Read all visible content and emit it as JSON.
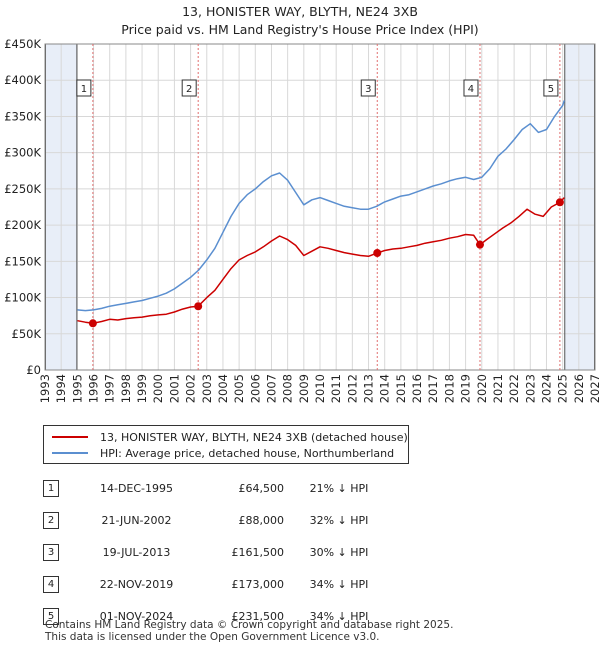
{
  "title_line1": "13, HONISTER WAY, BLYTH, NE24 3XB",
  "title_line2": "Price paid vs. HM Land Registry's House Price Index (HPI)",
  "legend": {
    "property": "13, HONISTER WAY, BLYTH, NE24 3XB (detached house)",
    "hpi": "HPI: Average price, detached house, Northumberland"
  },
  "colors": {
    "property": "#cc0000",
    "hpi": "#5b8fd0",
    "band": "#e8eef8",
    "grid": "#d8d8d8",
    "marker_line": "#e07070"
  },
  "sales": [
    {
      "num": "1",
      "date": "14-DEC-1995",
      "price": "£64,500",
      "pct": "21% ↓ HPI"
    },
    {
      "num": "2",
      "date": "21-JUN-2002",
      "price": "£88,000",
      "pct": "32% ↓ HPI"
    },
    {
      "num": "3",
      "date": "19-JUL-2013",
      "price": "£161,500",
      "pct": "30% ↓ HPI"
    },
    {
      "num": "4",
      "date": "22-NOV-2019",
      "price": "£173,000",
      "pct": "34% ↓ HPI"
    },
    {
      "num": "5",
      "date": "01-NOV-2024",
      "price": "£231,500",
      "pct": "34% ↓ HPI"
    }
  ],
  "footer": {
    "line1": "Contains HM Land Registry data © Crown copyright and database right 2025.",
    "line2": "This data is licensed under the Open Government Licence v3.0."
  },
  "chart_data": {
    "type": "line",
    "title": "13, HONISTER WAY, BLYTH, NE24 3XB",
    "subtitle": "Price paid vs. HM Land Registry's House Price Index (HPI)",
    "xlabel": "",
    "ylabel": "",
    "xlim": [
      1993,
      2027
    ],
    "ylim": [
      0,
      450000
    ],
    "grid": true,
    "legend_position": "below",
    "y_ticks": [
      0,
      50000,
      100000,
      150000,
      200000,
      250000,
      300000,
      350000,
      400000,
      450000
    ],
    "y_tick_labels": [
      "£0",
      "£50K",
      "£100K",
      "£150K",
      "£200K",
      "£250K",
      "£300K",
      "£350K",
      "£400K",
      "£450K"
    ],
    "x_ticks": [
      1993,
      1994,
      1995,
      1996,
      1997,
      1998,
      1999,
      2000,
      2001,
      2002,
      2003,
      2004,
      2005,
      2006,
      2007,
      2008,
      2009,
      2010,
      2011,
      2012,
      2013,
      2014,
      2015,
      2016,
      2017,
      2018,
      2019,
      2020,
      2021,
      2022,
      2023,
      2024,
      2025,
      2026,
      2027
    ],
    "shaded_regions": [
      [
        1993,
        1995.0
      ],
      [
        2025.1,
        2027
      ]
    ],
    "series": [
      {
        "name": "13, HONISTER WAY, BLYTH, NE24 3XB (detached house)",
        "color": "#cc0000",
        "x": [
          1995.0,
          1995.5,
          1995.96,
          1996.5,
          1997,
          1997.5,
          1998,
          1998.5,
          1999,
          1999.5,
          2000,
          2000.5,
          2001,
          2001.5,
          2002.0,
          2002.47,
          2003,
          2003.5,
          2004,
          2004.5,
          2005,
          2005.5,
          2006,
          2006.5,
          2007,
          2007.5,
          2008,
          2008.5,
          2009,
          2009.5,
          2010,
          2010.5,
          2011,
          2011.5,
          2012,
          2012.5,
          2013,
          2013.54,
          2014,
          2014.5,
          2015,
          2015.5,
          2016,
          2016.5,
          2017,
          2017.5,
          2018,
          2018.5,
          2019,
          2019.5,
          2019.89,
          2020.3,
          2020.8,
          2021.3,
          2021.8,
          2022.3,
          2022.8,
          2023.3,
          2023.8,
          2024.3,
          2024.83,
          2025.1
        ],
        "y": [
          68000,
          66000,
          64500,
          67000,
          70000,
          69000,
          71000,
          72000,
          73000,
          75000,
          76000,
          77000,
          80000,
          84000,
          87000,
          88000,
          100000,
          110000,
          125000,
          140000,
          152000,
          158000,
          163000,
          170000,
          178000,
          185000,
          180000,
          172000,
          158000,
          164000,
          170000,
          168000,
          165000,
          162000,
          160000,
          158000,
          157000,
          161500,
          165000,
          167000,
          168000,
          170000,
          172000,
          175000,
          177000,
          179000,
          182000,
          184000,
          187000,
          186000,
          173000,
          180000,
          188000,
          196000,
          203000,
          212000,
          222000,
          215000,
          212000,
          225000,
          231500,
          238000
        ]
      },
      {
        "name": "HPI: Average price, detached house, Northumberland",
        "color": "#5b8fd0",
        "x": [
          1995.0,
          1995.5,
          1996,
          1996.5,
          1997,
          1997.5,
          1998,
          1998.5,
          1999,
          1999.5,
          2000,
          2000.5,
          2001,
          2001.5,
          2002,
          2002.5,
          2003,
          2003.5,
          2004,
          2004.5,
          2005,
          2005.5,
          2006,
          2006.5,
          2007,
          2007.5,
          2008,
          2008.5,
          2009,
          2009.5,
          2010,
          2010.5,
          2011,
          2011.5,
          2012,
          2012.5,
          2013,
          2013.5,
          2014,
          2014.5,
          2015,
          2015.5,
          2016,
          2016.5,
          2017,
          2017.5,
          2018,
          2018.5,
          2019,
          2019.5,
          2020,
          2020.5,
          2021,
          2021.5,
          2022,
          2022.5,
          2023,
          2023.5,
          2024,
          2024.5,
          2025.0,
          2025.1
        ],
        "y": [
          83000,
          82000,
          83000,
          85000,
          88000,
          90000,
          92000,
          94000,
          96000,
          99000,
          102000,
          106000,
          112000,
          120000,
          128000,
          138000,
          152000,
          168000,
          190000,
          212000,
          230000,
          242000,
          250000,
          260000,
          268000,
          272000,
          262000,
          245000,
          228000,
          235000,
          238000,
          234000,
          230000,
          226000,
          224000,
          222000,
          222000,
          226000,
          232000,
          236000,
          240000,
          242000,
          246000,
          250000,
          254000,
          257000,
          261000,
          264000,
          266000,
          263000,
          266000,
          278000,
          295000,
          305000,
          318000,
          332000,
          340000,
          328000,
          332000,
          350000,
          365000,
          372000
        ]
      }
    ],
    "sale_markers": [
      {
        "label": "1",
        "x": 1995.96,
        "y": 64500
      },
      {
        "label": "2",
        "x": 2002.47,
        "y": 88000
      },
      {
        "label": "3",
        "x": 2013.54,
        "y": 161500
      },
      {
        "label": "4",
        "x": 2019.89,
        "y": 173000
      },
      {
        "label": "5",
        "x": 2024.83,
        "y": 231500
      }
    ]
  }
}
